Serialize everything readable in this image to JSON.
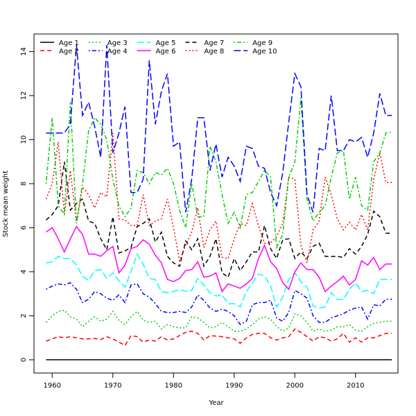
{
  "chart_data": {
    "type": "line",
    "title": "",
    "xlabel": "Year",
    "ylabel": "Stock mean weight",
    "xlim": [
      1957,
      2017
    ],
    "ylim": [
      -0.6,
      14.8
    ],
    "xticks": [
      1960,
      1970,
      1980,
      1990,
      2000,
      2010
    ],
    "yticks": [
      0,
      2,
      4,
      6,
      8,
      10,
      12,
      14
    ],
    "grid": false,
    "legend_position": "top-left",
    "x_start": 1959,
    "x_end": 2016,
    "series": [
      {
        "name": "Age 1",
        "color": "#000000",
        "style": "solid",
        "values": [
          0,
          0,
          0,
          0,
          0,
          0,
          0,
          0,
          0,
          0,
          0,
          0,
          0,
          0,
          0,
          0,
          0,
          0,
          0,
          0,
          0,
          0,
          0,
          0,
          0,
          0,
          0,
          0,
          0,
          0,
          0,
          0,
          0,
          0,
          0,
          0,
          0,
          0,
          0,
          0,
          0,
          0,
          0,
          0,
          0,
          0,
          0,
          0,
          0,
          0,
          0,
          0,
          0,
          0,
          0,
          0,
          0,
          0
        ]
      },
      {
        "name": "Age 2",
        "color": "#ff0000",
        "style": "dashed",
        "values": [
          0.85,
          0.95,
          1.05,
          1.0,
          1.05,
          1.0,
          0.95,
          0.95,
          0.97,
          0.92,
          1.05,
          0.95,
          0.8,
          0.65,
          1.1,
          1.05,
          0.8,
          0.9,
          0.85,
          1.05,
          0.9,
          0.95,
          1.1,
          1.25,
          1.3,
          1.2,
          0.9,
          1.1,
          1.08,
          1.05,
          1.0,
          0.95,
          0.75,
          1.0,
          1.15,
          1.2,
          1.2,
          1.0,
          0.9,
          1.0,
          1.05,
          1.4,
          1.25,
          1.05,
          0.85,
          1.05,
          1.0,
          0.85,
          0.95,
          1.2,
          0.8,
          1.0,
          0.8,
          1.0,
          1.0,
          1.1,
          1.2,
          1.2
        ]
      },
      {
        "name": "Age 3",
        "color": "#00cd00",
        "style": "dotted",
        "values": [
          1.7,
          2.0,
          2.2,
          2.25,
          1.95,
          1.85,
          1.5,
          1.75,
          1.95,
          1.75,
          1.85,
          2.2,
          1.8,
          1.6,
          1.95,
          2.2,
          1.8,
          1.7,
          1.75,
          1.4,
          1.6,
          1.5,
          1.45,
          1.45,
          1.95,
          1.9,
          1.7,
          1.45,
          1.5,
          1.7,
          1.5,
          1.3,
          1.3,
          1.4,
          1.6,
          1.85,
          1.95,
          1.85,
          1.5,
          1.3,
          1.45,
          2.1,
          2.0,
          1.7,
          1.3,
          1.4,
          1.3,
          1.35,
          1.5,
          1.5,
          1.6,
          1.35,
          1.3,
          1.5,
          1.65,
          1.7,
          1.75,
          1.75
        ]
      },
      {
        "name": "Age 4",
        "color": "#0000ff",
        "style": "dotdash",
        "values": [
          3.2,
          3.35,
          3.45,
          3.4,
          3.5,
          3.2,
          2.6,
          2.75,
          3.1,
          3.0,
          2.8,
          2.7,
          2.95,
          2.6,
          3.4,
          3.45,
          3.0,
          2.85,
          2.55,
          2.2,
          2.15,
          2.15,
          2.2,
          2.15,
          2.4,
          2.95,
          2.7,
          2.35,
          2.2,
          2.3,
          2.2,
          2.0,
          1.6,
          1.75,
          2.5,
          2.6,
          2.6,
          2.7,
          1.9,
          1.75,
          2.15,
          3.15,
          3.0,
          2.8,
          2.0,
          1.7,
          1.7,
          1.9,
          2.0,
          2.1,
          2.25,
          2.35,
          2.4,
          1.85,
          2.5,
          2.45,
          2.75,
          2.75
        ]
      },
      {
        "name": "Age 5",
        "color": "#00ffff",
        "style": "longdash",
        "values": [
          4.4,
          4.45,
          4.7,
          4.6,
          4.6,
          4.3,
          3.8,
          3.6,
          4.05,
          4.1,
          3.7,
          3.95,
          3.6,
          3.3,
          4.0,
          4.8,
          4.35,
          3.7,
          3.65,
          3.1,
          3.05,
          3.1,
          3.2,
          3.1,
          3.15,
          3.7,
          3.4,
          3.05,
          2.9,
          2.95,
          2.55,
          2.55,
          2.4,
          3.1,
          3.5,
          3.9,
          3.8,
          3.35,
          2.4,
          2.85,
          3.65,
          3.95,
          3.55,
          3.3,
          2.45,
          2.35,
          2.4,
          3.05,
          2.75,
          2.75,
          3.2,
          3.5,
          3.1,
          3.15,
          3.0,
          3.65,
          3.65,
          3.65
        ]
      },
      {
        "name": "Age 6",
        "color": "#ff00ff",
        "style": "solid",
        "values": [
          5.8,
          6.0,
          5.5,
          4.9,
          5.5,
          6.05,
          5.7,
          4.8,
          4.8,
          4.7,
          4.95,
          5.15,
          3.95,
          4.3,
          5.05,
          5.15,
          5.45,
          5.25,
          4.75,
          4.4,
          3.65,
          3.55,
          3.7,
          4.05,
          4.1,
          4.45,
          3.75,
          3.8,
          3.95,
          3.1,
          3.45,
          3.35,
          3.25,
          3.45,
          3.7,
          4.6,
          5.2,
          4.45,
          4.15,
          3.5,
          3.2,
          4.0,
          4.4,
          4.1,
          4.1,
          3.75,
          3.1,
          3.35,
          3.55,
          3.8,
          3.4,
          3.65,
          4.5,
          4.3,
          4.65,
          4.1,
          4.35,
          4.35
        ]
      },
      {
        "name": "Age 7",
        "color": "#000000",
        "style": "dashed",
        "values": [
          6.35,
          6.6,
          7.0,
          9.0,
          6.8,
          7.1,
          7.3,
          6.3,
          6.2,
          5.5,
          5.0,
          6.5,
          4.85,
          4.95,
          5.1,
          6.05,
          6.2,
          6.4,
          5.35,
          5.8,
          4.7,
          4.4,
          4.25,
          5.4,
          5.0,
          5.5,
          4.25,
          4.7,
          5.5,
          3.95,
          3.75,
          4.6,
          4.05,
          4.45,
          4.9,
          4.9,
          6.1,
          5.05,
          4.6,
          5.45,
          5.5,
          4.6,
          4.9,
          4.6,
          5.15,
          5.3,
          4.7,
          4.7,
          4.7,
          4.65,
          5.05,
          4.8,
          5.15,
          5.7,
          6.75,
          6.5,
          5.75,
          5.75
        ]
      },
      {
        "name": "Age 8",
        "color": "#ff0000",
        "style": "dotted",
        "values": [
          7.3,
          8.0,
          9.9,
          6.6,
          8.6,
          6.2,
          7.85,
          7.5,
          6.9,
          7.6,
          7.4,
          10.3,
          6.4,
          6.35,
          6.1,
          6.1,
          7.5,
          6.1,
          6.3,
          6.4,
          7.3,
          6.0,
          4.5,
          5.2,
          5.8,
          6.9,
          5.1,
          5.9,
          6.3,
          4.65,
          4.6,
          5.5,
          6.2,
          6.1,
          7.1,
          6.1,
          5.3,
          5.3,
          5.6,
          6.2,
          8.3,
          8.2,
          5.2,
          4.4,
          5.9,
          6.3,
          8.3,
          7.5,
          6.4,
          5.9,
          6.25,
          5.9,
          6.6,
          5.9,
          8.2,
          9.4,
          8.05,
          8.05
        ]
      },
      {
        "name": "Age 9",
        "color": "#00cd00",
        "style": "dotdash",
        "values": [
          8.0,
          11.0,
          7.0,
          6.6,
          11.7,
          6.2,
          8.0,
          10.4,
          11.0,
          10.7,
          10.0,
          8.2,
          7.0,
          6.5,
          6.9,
          8.6,
          8.5,
          8.0,
          8.5,
          8.4,
          8.7,
          8.0,
          6.8,
          6.0,
          8.0,
          6.5,
          6.5,
          9.7,
          9.0,
          7.5,
          6.2,
          6.7,
          6.0,
          7.5,
          7.6,
          8.1,
          8.6,
          8.3,
          5.1,
          5.7,
          8.3,
          9.0,
          11.9,
          7.3,
          6.3,
          6.7,
          7.0,
          8.3,
          9.4,
          9.5,
          7.3,
          8.3,
          7.0,
          6.8,
          9.0,
          9.4,
          10.3,
          10.35
        ]
      },
      {
        "name": "Age 10",
        "color": "#0000ff",
        "style": "longdash",
        "values": [
          10.3,
          10.3,
          10.3,
          10.3,
          10.7,
          14.3,
          11.1,
          11.7,
          10.6,
          9.2,
          14.3,
          9.4,
          10.3,
          11.5,
          7.6,
          7.6,
          8.2,
          13.6,
          10.7,
          12.2,
          13.0,
          9.7,
          9.9,
          6.7,
          8.2,
          11.0,
          11.0,
          8.6,
          9.8,
          8.3,
          9.2,
          8.8,
          8.1,
          9.7,
          9.6,
          8.8,
          8.7,
          7.6,
          7.0,
          8.5,
          10.8,
          13.0,
          12.4,
          7.5,
          6.7,
          9.6,
          9.5,
          12.0,
          9.5,
          9.5,
          10.0,
          9.9,
          10.1,
          9.2,
          10.3,
          12.1,
          11.1,
          11.1
        ]
      }
    ]
  }
}
